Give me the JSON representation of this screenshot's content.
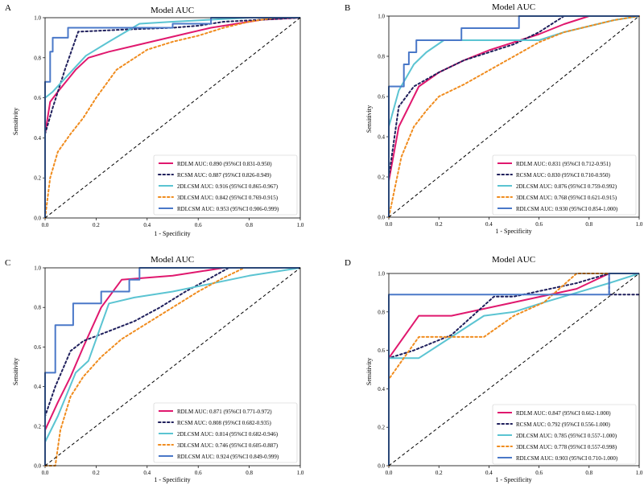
{
  "figure": {
    "x_label": "1 - Specificity",
    "y_label": "Sensitivity"
  },
  "series_styles": [
    {
      "name": "RDLM",
      "color": "#e0186e",
      "dash": ""
    },
    {
      "name": "RCSM",
      "color": "#1f1f5c",
      "dash": "2.5,3"
    },
    {
      "name": "2DLCSM",
      "color": "#5bc4d2",
      "dash": ""
    },
    {
      "name": "3DLCSM",
      "color": "#f08c1e",
      "dash": "2.5,3"
    },
    {
      "name": "RDLCSM",
      "color": "#4a78c8",
      "dash": ""
    }
  ],
  "chart_data": [
    {
      "panel": "A",
      "type": "line",
      "title": "Model AUC",
      "xlabel": "1 - Specificity",
      "ylabel": "Sensitivity",
      "xlim": [
        0,
        1
      ],
      "ylim": [
        0,
        1
      ],
      "xticks": [
        "0.0",
        "0.2",
        "0.4",
        "0.6",
        "0.8",
        "1.0"
      ],
      "yticks": [
        "0.0",
        "0.2",
        "0.4",
        "0.6",
        "0.8",
        "1.0"
      ],
      "diagonal": true,
      "series": [
        {
          "name": "RDLM",
          "legend": "RDLM AUC: 0.890 (95%CI 0.831-0.950)",
          "x": [
            0,
            0,
            0.02,
            0.05,
            0.12,
            0.17,
            0.25,
            0.35,
            0.45,
            0.55,
            0.65,
            0.75,
            0.85,
            1
          ],
          "y": [
            0,
            0.42,
            0.58,
            0.63,
            0.74,
            0.8,
            0.83,
            0.86,
            0.89,
            0.92,
            0.95,
            0.97,
            0.99,
            1
          ]
        },
        {
          "name": "RCSM",
          "legend": "RCSM AUC: 0.887 (95%CI 0.826-0.949)",
          "x": [
            0,
            0,
            0.03,
            0.08,
            0.13,
            0.3,
            0.5,
            0.6,
            0.7,
            1
          ],
          "y": [
            0,
            0.42,
            0.55,
            0.75,
            0.93,
            0.94,
            0.95,
            0.96,
            0.98,
            1
          ]
        },
        {
          "name": "2DLCSM",
          "legend": "2DLCSM AUC: 0.916 (95%CI 0.865-0.967)",
          "x": [
            0,
            0,
            0.03,
            0.08,
            0.16,
            0.25,
            0.37,
            0.5,
            0.65,
            0.8,
            1
          ],
          "y": [
            0,
            0.6,
            0.63,
            0.7,
            0.81,
            0.88,
            0.97,
            0.98,
            0.99,
            1,
            1
          ]
        },
        {
          "name": "3DLCSM",
          "legend": "3DLCSM AUC: 0.842 (95%CI 0.769-0.915)",
          "x": [
            0,
            0.02,
            0.05,
            0.1,
            0.15,
            0.2,
            0.28,
            0.4,
            0.5,
            0.6,
            0.7,
            0.8,
            0.9,
            1
          ],
          "y": [
            0,
            0.2,
            0.33,
            0.42,
            0.5,
            0.6,
            0.74,
            0.84,
            0.88,
            0.91,
            0.95,
            0.98,
            1,
            1
          ]
        },
        {
          "name": "RDLCSM",
          "legend": "RDLCSM AUC: 0.953 (95%CI 0.906-0.999)",
          "x": [
            0,
            0,
            0,
            0.02,
            0.02,
            0.03,
            0.03,
            0.05,
            0.05,
            0.09,
            0.09,
            0.5,
            0.5,
            0.65,
            0.65,
            1
          ],
          "y": [
            0,
            0.4,
            0.68,
            0.68,
            0.83,
            0.83,
            0.9,
            0.9,
            0.9,
            0.9,
            0.95,
            0.95,
            0.97,
            0.97,
            1,
            1
          ]
        }
      ]
    },
    {
      "panel": "B",
      "type": "line",
      "title": "Model AUC",
      "xlabel": "1 - Specificity",
      "ylabel": "Sensitivity",
      "xlim": [
        0,
        1
      ],
      "ylim": [
        0,
        1
      ],
      "xticks": [
        "0.0",
        "0.2",
        "0.4",
        "0.6",
        "0.8",
        "1.0"
      ],
      "yticks": [
        "0.0",
        "0.2",
        "0.4",
        "0.6",
        "0.8",
        "1.0"
      ],
      "diagonal": true,
      "series": [
        {
          "name": "RDLM",
          "legend": "RDLM AUC: 0.831 (95%CI 0.712-0.951)",
          "x": [
            0,
            0,
            0.04,
            0.08,
            0.12,
            0.2,
            0.3,
            0.4,
            0.5,
            0.6,
            0.7,
            0.8,
            1
          ],
          "y": [
            0,
            0.18,
            0.45,
            0.55,
            0.65,
            0.72,
            0.78,
            0.83,
            0.87,
            0.91,
            0.96,
            1,
            1
          ]
        },
        {
          "name": "RCSM",
          "legend": "RCSM AUC: 0.830 (95%CI 0.710-0.950)",
          "x": [
            0,
            0,
            0.04,
            0.1,
            0.2,
            0.3,
            0.4,
            0.5,
            0.6,
            0.7,
            1
          ],
          "y": [
            0,
            0.2,
            0.55,
            0.65,
            0.72,
            0.78,
            0.82,
            0.86,
            0.92,
            1,
            1
          ]
        },
        {
          "name": "2DLCSM",
          "legend": "2DLCSM AUC: 0.876 (95%CI 0.759-0.992)",
          "x": [
            0,
            0,
            0.04,
            0.1,
            0.15,
            0.22,
            0.3,
            0.4,
            0.5,
            0.6,
            0.7,
            0.8,
            0.9,
            1
          ],
          "y": [
            0,
            0.45,
            0.63,
            0.76,
            0.82,
            0.88,
            0.88,
            0.88,
            0.88,
            0.88,
            0.92,
            0.95,
            0.98,
            1
          ]
        },
        {
          "name": "3DLCSM",
          "legend": "3DLCSM AUC: 0.768 (95%CI 0.621-0.915)",
          "x": [
            0,
            0.02,
            0.05,
            0.1,
            0.15,
            0.2,
            0.3,
            0.4,
            0.5,
            0.6,
            0.7,
            0.8,
            0.9,
            1
          ],
          "y": [
            0,
            0.12,
            0.3,
            0.45,
            0.53,
            0.6,
            0.66,
            0.73,
            0.8,
            0.87,
            0.92,
            0.95,
            0.98,
            1
          ]
        },
        {
          "name": "RDLCSM",
          "legend": "RDLCSM AUC: 0.930 (95%CI 0.854-1.000)",
          "x": [
            0,
            0,
            0.06,
            0.06,
            0.08,
            0.08,
            0.11,
            0.11,
            0.29,
            0.29,
            0.52,
            0.52,
            1
          ],
          "y": [
            0,
            0.65,
            0.65,
            0.76,
            0.76,
            0.82,
            0.82,
            0.88,
            0.88,
            0.94,
            0.94,
            1,
            1
          ]
        }
      ]
    },
    {
      "panel": "C",
      "type": "line",
      "title": "Model AUC",
      "xlabel": "1 - Specificity",
      "ylabel": "Sensitivity",
      "xlim": [
        0,
        1
      ],
      "ylim": [
        0,
        1
      ],
      "xticks": [
        "0.0",
        "0.2",
        "0.4",
        "0.6",
        "0.8",
        "1.0"
      ],
      "yticks": [
        "0.0",
        "0.2",
        "0.4",
        "0.6",
        "0.8",
        "1.0"
      ],
      "diagonal": true,
      "series": [
        {
          "name": "RDLM",
          "legend": "RDLM AUC: 0.871 (95%CI 0.771-0.972)",
          "x": [
            0,
            0,
            0.05,
            0.1,
            0.15,
            0.22,
            0.3,
            0.4,
            0.5,
            0.6,
            0.7,
            0.8,
            1
          ],
          "y": [
            0,
            0.18,
            0.32,
            0.45,
            0.6,
            0.8,
            0.94,
            0.95,
            0.96,
            0.98,
            1,
            1,
            1
          ]
        },
        {
          "name": "RCSM",
          "legend": "RCSM AUC: 0.808 (95%CI 0.682-0.935)",
          "x": [
            0,
            0,
            0.04,
            0.1,
            0.15,
            0.25,
            0.35,
            0.45,
            0.55,
            0.65,
            0.72,
            1
          ],
          "y": [
            0,
            0.25,
            0.4,
            0.58,
            0.63,
            0.68,
            0.73,
            0.8,
            0.88,
            0.95,
            1,
            1
          ]
        },
        {
          "name": "2DLCSM",
          "legend": "2DLCSM AUC: 0.814 (95%CI 0.682-0.946)",
          "x": [
            0,
            0,
            0.05,
            0.12,
            0.17,
            0.25,
            0.35,
            0.5,
            0.65,
            0.8,
            0.9,
            1
          ],
          "y": [
            0,
            0.12,
            0.25,
            0.47,
            0.53,
            0.82,
            0.85,
            0.88,
            0.92,
            0.96,
            0.98,
            1
          ]
        },
        {
          "name": "3DLCSM",
          "legend": "3DLCSM AUC: 0.746 (95%CI 0.605-0.887)",
          "x": [
            0,
            0.04,
            0.06,
            0.1,
            0.15,
            0.22,
            0.3,
            0.4,
            0.5,
            0.6,
            0.7,
            0.78,
            1
          ],
          "y": [
            0,
            0,
            0.18,
            0.35,
            0.45,
            0.55,
            0.64,
            0.72,
            0.8,
            0.88,
            0.95,
            1,
            1
          ]
        },
        {
          "name": "RDLCSM",
          "legend": "RDLCSM AUC: 0.924 (95%CI 0.849-0.999)",
          "x": [
            0,
            0,
            0.04,
            0.04,
            0.11,
            0.11,
            0.22,
            0.22,
            0.33,
            0.33,
            0.37,
            0.37,
            1
          ],
          "y": [
            0,
            0.47,
            0.47,
            0.71,
            0.71,
            0.82,
            0.82,
            0.88,
            0.88,
            0.94,
            0.94,
            1,
            1
          ]
        }
      ]
    },
    {
      "panel": "D",
      "type": "line",
      "title": "Model AUC",
      "xlabel": "1 - Specificity",
      "ylabel": "Sensitivity",
      "xlim": [
        0,
        1
      ],
      "ylim": [
        0,
        1
      ],
      "xticks": [
        "0.0",
        "0.2",
        "0.4",
        "0.6",
        "0.8",
        "1.0"
      ],
      "yticks": [
        "0.0",
        "0.2",
        "0.4",
        "0.6",
        "0.8",
        "1.0"
      ],
      "diagonal": true,
      "series": [
        {
          "name": "RDLM",
          "legend": "RDLM AUC: 0.847 (95%CI 0.662-1.000)",
          "x": [
            0,
            0,
            0.12,
            0.25,
            0.5,
            0.75,
            0.88,
            1
          ],
          "y": [
            0,
            0.56,
            0.78,
            0.78,
            0.85,
            0.92,
            1,
            1
          ]
        },
        {
          "name": "RCSM",
          "legend": "RCSM AUC: 0.792 (95%CI 0.556-1.000)",
          "x": [
            0,
            0,
            0.1,
            0.25,
            0.42,
            0.5,
            0.75,
            0.88,
            0.88,
            1
          ],
          "y": [
            0,
            0.56,
            0.6,
            0.68,
            0.88,
            0.88,
            0.95,
            1,
            0.89,
            0.89
          ]
        },
        {
          "name": "2DLCSM",
          "legend": "2DLCSM AUC: 0.785 (95%CI 0.557-1.000)",
          "x": [
            0,
            0,
            0.12,
            0.25,
            0.38,
            0.5,
            0.62,
            0.75,
            0.88,
            1
          ],
          "y": [
            0,
            0.56,
            0.56,
            0.67,
            0.78,
            0.8,
            0.85,
            0.9,
            0.95,
            1
          ]
        },
        {
          "name": "3DLCSM",
          "legend": "3DLCSM AUC: 0.778 (95%CI 0.557-0.998)",
          "x": [
            0,
            0,
            0.12,
            0.25,
            0.38,
            0.5,
            0.62,
            0.75,
            0.88,
            1
          ],
          "y": [
            0,
            0.45,
            0.67,
            0.67,
            0.67,
            0.78,
            0.85,
            1,
            1,
            1
          ]
        },
        {
          "name": "RDLCSM",
          "legend": "RDLCSM AUC: 0.903 (95%CI 0.710-1.000)",
          "x": [
            0,
            0,
            0.88,
            0.88,
            1
          ],
          "y": [
            0,
            0.89,
            0.89,
            1,
            1
          ]
        }
      ]
    }
  ]
}
